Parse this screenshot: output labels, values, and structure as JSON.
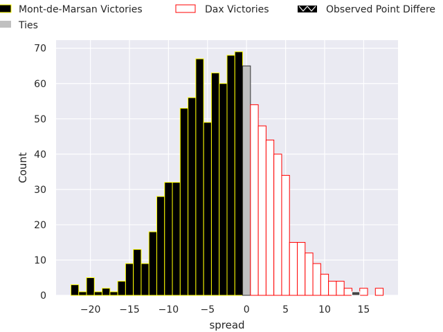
{
  "chart_data": {
    "type": "bar",
    "xlabel": "spread",
    "ylabel": "Count",
    "xlim": [
      -24.4,
      19.4
    ],
    "ylim": [
      0,
      72.3
    ],
    "xticks": [
      -20,
      -15,
      -10,
      -5,
      0,
      5,
      10,
      15
    ],
    "xtick_labels": [
      "−20",
      "−15",
      "−10",
      "−5",
      "0",
      "5",
      "10",
      "15"
    ],
    "yticks": [
      0,
      10,
      20,
      30,
      40,
      50,
      60,
      70
    ],
    "grid": true,
    "legend_position": "top",
    "series": [
      {
        "name": "Mont-de-Marsan Victories",
        "fill": "#000000",
        "edge": "#ffff00",
        "x": [
          -22,
          -21,
          -20,
          -19,
          -18,
          -17,
          -16,
          -15,
          -14,
          -13,
          -12,
          -11,
          -10,
          -9,
          -8,
          -7,
          -6,
          -5,
          -4,
          -3,
          -2,
          -1
        ],
        "values": [
          3,
          1,
          5,
          1,
          2,
          1,
          4,
          9,
          13,
          9,
          18,
          28,
          32,
          32,
          53,
          56,
          67,
          49,
          63,
          60,
          68,
          69
        ]
      },
      {
        "name": "Ties",
        "fill": "#c0c0c0",
        "edge": "#333333",
        "x": [
          0
        ],
        "values": [
          65
        ]
      },
      {
        "name": "Dax Victories",
        "fill": "#ffffff",
        "edge": "#ff0000",
        "x": [
          1,
          2,
          3,
          4,
          5,
          6,
          7,
          8,
          9,
          10,
          11,
          12,
          13,
          15,
          17
        ],
        "values": [
          54,
          48,
          44,
          40,
          34,
          15,
          15,
          12,
          9,
          6,
          4,
          4,
          2,
          2,
          2
        ]
      },
      {
        "name": "Observed Point Differential",
        "fill": "#444444",
        "edge": "#ffffff",
        "x": [
          14
        ],
        "values": [
          1
        ]
      }
    ],
    "legend": [
      "Mont-de-Marsan Victories",
      "Dax Victories",
      "Observed Point Differe",
      "Ties"
    ]
  }
}
